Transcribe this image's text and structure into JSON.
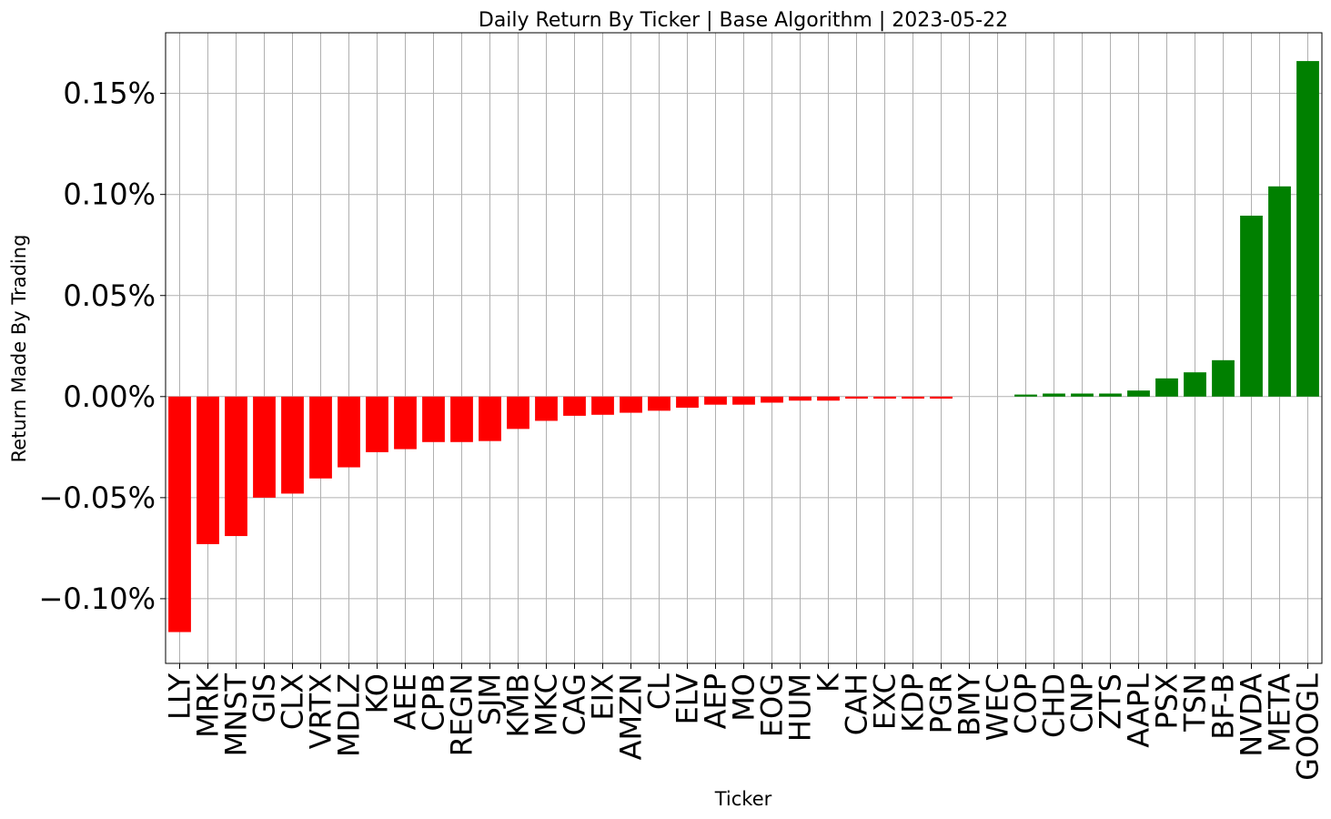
{
  "chart_data": {
    "type": "bar",
    "title": "Daily Return By Ticker | Base Algorithm | 2023-05-22",
    "xlabel": "Ticker",
    "ylabel": "Return Made By Trading",
    "ylim": [
      -0.132,
      0.18
    ],
    "yticks": [
      -0.1,
      -0.05,
      0.0,
      0.05,
      0.1,
      0.15
    ],
    "ytick_labels": [
      "−0.10%",
      "−0.05%",
      "0.00%",
      "0.05%",
      "0.10%",
      "0.15%"
    ],
    "grid": true,
    "positive_color": "#008000",
    "negative_color": "#ff0000",
    "categories": [
      "LLY",
      "MRK",
      "MNST",
      "GIS",
      "CLX",
      "VRTX",
      "MDLZ",
      "KO",
      "AEE",
      "CPB",
      "REGN",
      "SJM",
      "KMB",
      "MKC",
      "CAG",
      "EIX",
      "AMZN",
      "CL",
      "ELV",
      "AEP",
      "MO",
      "EOG",
      "HUM",
      "K",
      "CAH",
      "EXC",
      "KDP",
      "PGR",
      "BMY",
      "WEC",
      "COP",
      "CHD",
      "CNP",
      "ZTS",
      "AAPL",
      "PSX",
      "TSN",
      "BF-B",
      "NVDA",
      "META",
      "GOOGL"
    ],
    "values": [
      -0.1165,
      -0.073,
      -0.069,
      -0.05,
      -0.048,
      -0.0405,
      -0.035,
      -0.0275,
      -0.026,
      -0.0225,
      -0.0225,
      -0.022,
      -0.016,
      -0.012,
      -0.0095,
      -0.009,
      -0.008,
      -0.007,
      -0.0055,
      -0.004,
      -0.004,
      -0.003,
      -0.002,
      -0.002,
      -0.001,
      -0.001,
      -0.001,
      -0.001,
      0.0,
      0.0,
      0.001,
      0.0015,
      0.0015,
      0.0015,
      0.003,
      0.009,
      0.012,
      0.018,
      0.0895,
      0.104,
      0.166
    ]
  }
}
